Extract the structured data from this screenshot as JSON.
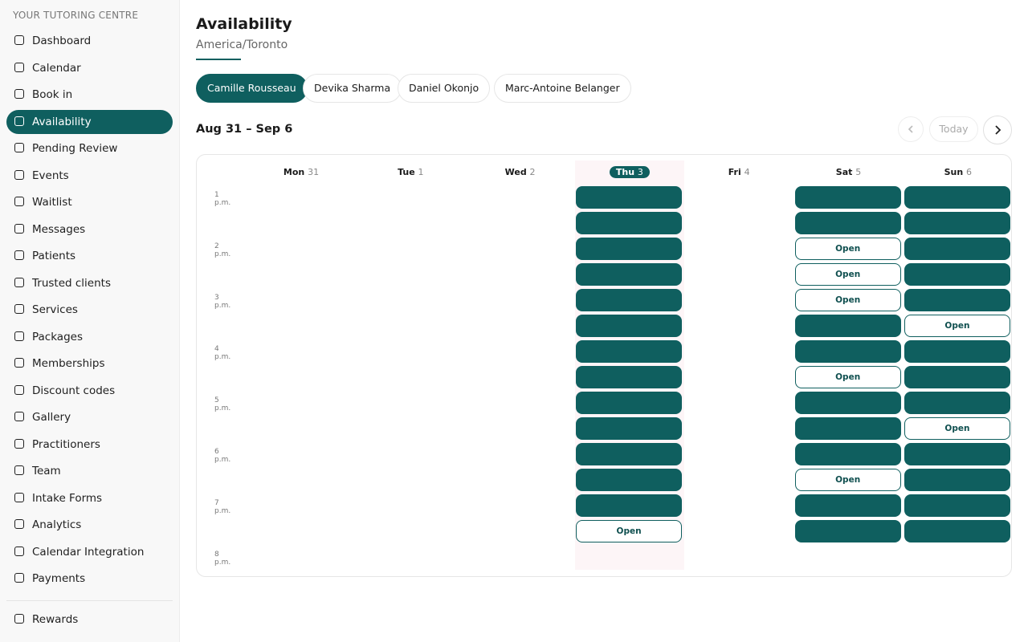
{
  "sidebar": {
    "org": "YOUR TUTORING CENTRE",
    "nav": [
      "Dashboard",
      "Calendar",
      "Book in",
      "Availability",
      "Pending Review",
      "Events",
      "Waitlist",
      "Messages",
      "Patients",
      "Trusted clients",
      "Services",
      "Packages",
      "Memberships",
      "Discount codes",
      "Gallery",
      "Practitioners",
      "Team",
      "Intake Forms",
      "Analytics",
      "Calendar Integration",
      "Payments"
    ],
    "active": "Availability",
    "footer_nav": [
      "Rewards"
    ]
  },
  "header": {
    "title": "Availability",
    "subtitle": "America/Toronto"
  },
  "tabs": {
    "items": [
      "Camille Rousseau",
      "Devika Sharma",
      "Daniel Okonjo",
      "Marc-Antoine Belanger"
    ],
    "active": "Camille Rousseau"
  },
  "week": {
    "range": "Aug 31 – Sep 6",
    "today": "Today"
  },
  "calendar": {
    "times": [
      "1 p.m.",
      "2 p.m.",
      "3 p.m.",
      "4 p.m.",
      "5 p.m.",
      "6 p.m.",
      "7 p.m.",
      "8 p.m."
    ],
    "today": "Thu",
    "days": [
      {
        "name": "Mon",
        "date": "31",
        "slots": []
      },
      {
        "name": "Tue",
        "date": "1",
        "slots": []
      },
      {
        "name": "Wed",
        "date": "2",
        "slots": []
      },
      {
        "name": "Thu",
        "date": "3",
        "slots": [
          null,
          null,
          null,
          null,
          null,
          null,
          null,
          null,
          null,
          null,
          null,
          null,
          null,
          "Open"
        ]
      },
      {
        "name": "Fri",
        "date": "4",
        "slots": []
      },
      {
        "name": "Sat",
        "date": "5",
        "slots": [
          null,
          null,
          "Open",
          "Open",
          "Open",
          null,
          null,
          "Open",
          null,
          null,
          null,
          "Open",
          null,
          null
        ]
      },
      {
        "name": "Sun",
        "date": "6",
        "slots": [
          null,
          null,
          null,
          null,
          null,
          "Open",
          null,
          null,
          null,
          "Open",
          null,
          null,
          null,
          null
        ]
      }
    ]
  }
}
